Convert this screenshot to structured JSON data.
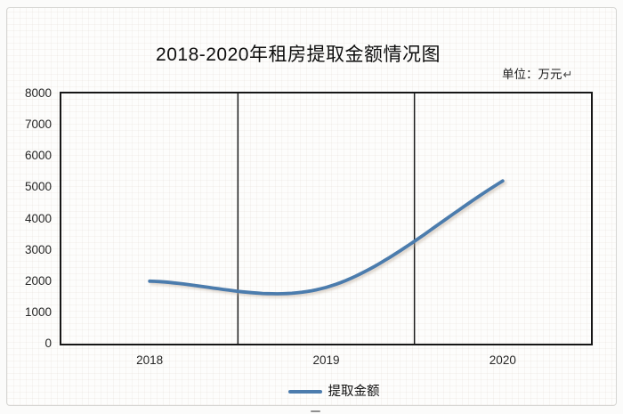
{
  "chart_data": {
    "type": "line",
    "title": "2018-2020年租房提取金额情况图",
    "unit_note": "单位：万元",
    "return_mark": "↵",
    "categories": [
      "2018",
      "2019",
      "2020"
    ],
    "series": [
      {
        "name": "提取金额",
        "values": [
          2000,
          1800,
          5200
        ],
        "color": "#4c7cad",
        "smooth": true
      }
    ],
    "xlabel": "",
    "ylabel": "",
    "ylim": [
      0,
      8000
    ],
    "y_ticks": [
      0,
      1000,
      2000,
      3000,
      4000,
      5000,
      6000,
      7000,
      8000
    ],
    "grid": {
      "vertical_between_categories": true,
      "horizontal": false
    },
    "legend_position": "bottom",
    "legend": [
      {
        "label": "提取金额",
        "color": "#4c7cad"
      }
    ]
  },
  "colors": {
    "line": "#4c7cad",
    "axis_frame": "#161616",
    "gridline": "#1c1c1c",
    "text": "#262626",
    "outer_border": "#d6d6d3"
  }
}
